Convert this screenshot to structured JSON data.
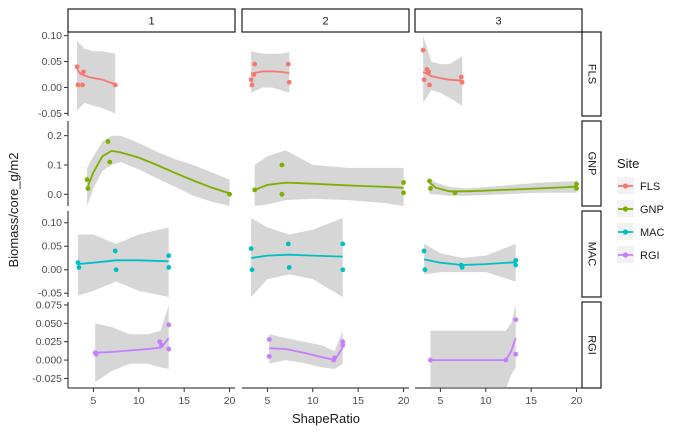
{
  "chart_data": {
    "type": "scatter",
    "xlabel": "ShapeRatio",
    "ylabel": "Biomass/core_g/m2",
    "columns": [
      "1",
      "2",
      "3"
    ],
    "rows": [
      "FLS",
      "GNP",
      "MAC",
      "RGI"
    ],
    "xlim": [
      2.2,
      20.6
    ],
    "xticks": [
      5,
      10,
      15,
      20
    ],
    "legend": {
      "title": "Site",
      "position": "right",
      "entries": [
        {
          "name": "FLS",
          "color": "#F8766D"
        },
        {
          "name": "GNP",
          "color": "#7CAE00"
        },
        {
          "name": "MAC",
          "color": "#00BFC4"
        },
        {
          "name": "RGI",
          "color": "#C77CFF"
        }
      ]
    },
    "row_scales": {
      "FLS": {
        "ylim": [
          -0.055,
          0.107
        ],
        "yticks": [
          -0.05,
          0.0,
          0.05,
          0.1
        ],
        "yticklabels": [
          "-0.05",
          "0.00",
          "0.05",
          "0.10"
        ]
      },
      "GNP": {
        "ylim": [
          -0.04,
          0.25
        ],
        "yticks": [
          0.0,
          0.1,
          0.2
        ],
        "yticklabels": [
          "0.0",
          "0.1",
          "0.2"
        ]
      },
      "MAC": {
        "ylim": [
          -0.058,
          0.125
        ],
        "yticks": [
          -0.05,
          0.0,
          0.05,
          0.1
        ],
        "yticklabels": [
          "-0.05",
          "0.00",
          "0.05",
          "0.10"
        ]
      },
      "RGI": {
        "ylim": [
          -0.038,
          0.079
        ],
        "yticks": [
          -0.025,
          0.0,
          0.025,
          0.05,
          0.075
        ],
        "yticklabels": [
          "-0.025",
          "0.000",
          "0.025",
          "0.050",
          "0.075"
        ]
      }
    },
    "panels": [
      {
        "col": "1",
        "row": "FLS",
        "points": [
          [
            3.2,
            0.04
          ],
          [
            3.3,
            0.005
          ],
          [
            3.8,
            0.005
          ],
          [
            3.9,
            0.03
          ],
          [
            7.4,
            0.005
          ]
        ],
        "fit": [
          [
            3.2,
            0.035
          ],
          [
            3.6,
            0.026
          ],
          [
            4.5,
            0.02
          ],
          [
            6,
            0.015
          ],
          [
            7.4,
            0.006
          ]
        ],
        "band": [
          [
            3.2,
            -0.045,
            0.09
          ],
          [
            4,
            -0.03,
            0.075
          ],
          [
            5,
            -0.035,
            0.07
          ],
          [
            6,
            -0.04,
            0.07
          ],
          [
            7.4,
            -0.05,
            0.065
          ]
        ]
      },
      {
        "col": "1",
        "row": "GNP",
        "points": [
          [
            4.3,
            0.05
          ],
          [
            4.4,
            0.02
          ],
          [
            6.6,
            0.18
          ],
          [
            6.8,
            0.11
          ],
          [
            20.0,
            0.0
          ]
        ],
        "fit": [
          [
            4.3,
            0.02
          ],
          [
            5,
            0.075
          ],
          [
            6,
            0.13
          ],
          [
            7,
            0.148
          ],
          [
            8,
            0.143
          ],
          [
            10,
            0.125
          ],
          [
            12,
            0.1
          ],
          [
            14,
            0.073
          ],
          [
            16,
            0.047
          ],
          [
            18,
            0.023
          ],
          [
            20,
            0.003
          ]
        ],
        "band": [
          [
            4.3,
            -0.04,
            0.09
          ],
          [
            5,
            0.02,
            0.13
          ],
          [
            6,
            0.08,
            0.18
          ],
          [
            7,
            0.1,
            0.2
          ],
          [
            8,
            0.11,
            0.2
          ],
          [
            10,
            0.085,
            0.175
          ],
          [
            12,
            0.055,
            0.145
          ],
          [
            14,
            0.025,
            0.12
          ],
          [
            16,
            -0.005,
            0.1
          ],
          [
            18,
            -0.025,
            0.075
          ],
          [
            20,
            -0.04,
            0.05
          ]
        ]
      },
      {
        "col": "1",
        "row": "MAC",
        "points": [
          [
            3.3,
            0.015
          ],
          [
            3.4,
            0.005
          ],
          [
            7.4,
            0.04
          ],
          [
            7.5,
            0.0
          ],
          [
            13.3,
            0.03
          ],
          [
            13.3,
            0.005
          ]
        ],
        "fit": [
          [
            3.3,
            0.012
          ],
          [
            5,
            0.015
          ],
          [
            7.5,
            0.02
          ],
          [
            10,
            0.02
          ],
          [
            13.3,
            0.018
          ]
        ],
        "band": [
          [
            3.3,
            -0.055,
            0.075
          ],
          [
            5,
            -0.045,
            0.075
          ],
          [
            7.5,
            -0.025,
            0.055
          ],
          [
            10,
            -0.045,
            0.075
          ],
          [
            13.3,
            -0.058,
            0.09
          ]
        ]
      },
      {
        "col": "1",
        "row": "RGI",
        "points": [
          [
            5.2,
            0.01
          ],
          [
            5.3,
            0.008
          ],
          [
            12.3,
            0.025
          ],
          [
            12.5,
            0.02
          ],
          [
            13.3,
            0.048
          ],
          [
            13.3,
            0.015
          ]
        ],
        "fit": [
          [
            5.2,
            0.01
          ],
          [
            7,
            0.011
          ],
          [
            9,
            0.013
          ],
          [
            11,
            0.015
          ],
          [
            12.4,
            0.017
          ],
          [
            12.8,
            0.022
          ],
          [
            13.3,
            0.03
          ]
        ],
        "band": [
          [
            5.2,
            -0.03,
            0.05
          ],
          [
            7,
            -0.015,
            0.045
          ],
          [
            9,
            -0.005,
            0.035
          ],
          [
            11,
            -0.005,
            0.035
          ],
          [
            12.4,
            -0.01,
            0.04
          ],
          [
            13.3,
            -0.012,
            0.075
          ]
        ]
      },
      {
        "col": "2",
        "row": "FLS",
        "points": [
          [
            3.2,
            0.015
          ],
          [
            3.3,
            0.005
          ],
          [
            3.5,
            0.025
          ],
          [
            3.6,
            0.045
          ],
          [
            7.3,
            0.045
          ],
          [
            7.4,
            0.01
          ]
        ],
        "fit": [
          [
            3.2,
            0.027
          ],
          [
            4.5,
            0.031
          ],
          [
            5.5,
            0.031
          ],
          [
            6.5,
            0.03
          ],
          [
            7.4,
            0.028
          ]
        ],
        "band": [
          [
            3.2,
            -0.01,
            0.07
          ],
          [
            4.5,
            0.0,
            0.065
          ],
          [
            5.5,
            0.0,
            0.065
          ],
          [
            6.5,
            -0.005,
            0.065
          ],
          [
            7.4,
            -0.01,
            0.068
          ]
        ]
      },
      {
        "col": "2",
        "row": "GNP",
        "points": [
          [
            3.6,
            0.015
          ],
          [
            6.6,
            0.1
          ],
          [
            6.6,
            0.0
          ],
          [
            20.0,
            0.04
          ],
          [
            20.0,
            0.005
          ]
        ],
        "fit": [
          [
            3.6,
            0.015
          ],
          [
            5,
            0.032
          ],
          [
            7,
            0.04
          ],
          [
            10,
            0.036
          ],
          [
            14,
            0.03
          ],
          [
            18,
            0.025
          ],
          [
            20,
            0.022
          ]
        ],
        "band": [
          [
            3.6,
            -0.04,
            0.1
          ],
          [
            5,
            -0.035,
            0.13
          ],
          [
            7,
            -0.02,
            0.15
          ],
          [
            10,
            -0.015,
            0.1
          ],
          [
            14,
            -0.02,
            0.09
          ],
          [
            18,
            -0.03,
            0.09
          ],
          [
            20,
            -0.04,
            0.09
          ]
        ]
      },
      {
        "col": "2",
        "row": "MAC",
        "points": [
          [
            3.2,
            0.045
          ],
          [
            3.3,
            0.0
          ],
          [
            7.3,
            0.055
          ],
          [
            7.4,
            0.005
          ],
          [
            13.3,
            0.055
          ],
          [
            13.3,
            0.0
          ]
        ],
        "fit": [
          [
            3.2,
            0.025
          ],
          [
            5,
            0.03
          ],
          [
            7.4,
            0.032
          ],
          [
            10,
            0.03
          ],
          [
            13.3,
            0.028
          ]
        ],
        "band": [
          [
            3.2,
            -0.058,
            0.11
          ],
          [
            5,
            -0.02,
            0.09
          ],
          [
            7.4,
            -0.01,
            0.075
          ],
          [
            10,
            -0.02,
            0.085
          ],
          [
            13.3,
            -0.058,
            0.11
          ]
        ]
      },
      {
        "col": "2",
        "row": "RGI",
        "points": [
          [
            5.2,
            0.028
          ],
          [
            5.2,
            0.005
          ],
          [
            12.3,
            0.0
          ],
          [
            12.4,
            0.003
          ],
          [
            13.3,
            0.02
          ],
          [
            13.3,
            0.025
          ]
        ],
        "fit": [
          [
            5.2,
            0.016
          ],
          [
            7,
            0.015
          ],
          [
            9,
            0.01
          ],
          [
            11,
            0.004
          ],
          [
            12.4,
            0.0
          ],
          [
            13.3,
            0.017
          ]
        ],
        "band": [
          [
            5.2,
            -0.005,
            0.035
          ],
          [
            7,
            0.0,
            0.03
          ],
          [
            9,
            -0.004,
            0.025
          ],
          [
            11,
            -0.01,
            0.02
          ],
          [
            12.4,
            -0.012,
            0.012
          ],
          [
            13.3,
            -0.005,
            0.04
          ]
        ]
      },
      {
        "col": "3",
        "row": "FLS",
        "points": [
          [
            3.1,
            0.072
          ],
          [
            3.2,
            0.015
          ],
          [
            3.5,
            0.035
          ],
          [
            3.7,
            0.03
          ],
          [
            3.8,
            0.005
          ],
          [
            7.3,
            0.02
          ],
          [
            7.4,
            0.01
          ]
        ],
        "fit": [
          [
            3.1,
            0.03
          ],
          [
            4,
            0.022
          ],
          [
            5,
            0.018
          ],
          [
            6,
            0.015
          ],
          [
            7.4,
            0.013
          ]
        ],
        "band": [
          [
            3.1,
            -0.03,
            0.1
          ],
          [
            4,
            -0.005,
            0.05
          ],
          [
            5,
            -0.01,
            0.045
          ],
          [
            6,
            -0.02,
            0.045
          ],
          [
            7.4,
            -0.035,
            0.06
          ]
        ]
      },
      {
        "col": "3",
        "row": "GNP",
        "points": [
          [
            3.8,
            0.045
          ],
          [
            3.9,
            0.02
          ],
          [
            6.6,
            0.005
          ],
          [
            20.0,
            0.035
          ],
          [
            20.0,
            0.02
          ]
        ],
        "fit": [
          [
            3.8,
            0.04
          ],
          [
            4.5,
            0.022
          ],
          [
            6,
            0.01
          ],
          [
            8,
            0.01
          ],
          [
            12,
            0.015
          ],
          [
            16,
            0.02
          ],
          [
            20,
            0.026
          ]
        ],
        "band": [
          [
            3.8,
            0.0,
            0.055
          ],
          [
            4.5,
            0.0,
            0.04
          ],
          [
            6,
            -0.005,
            0.025
          ],
          [
            8,
            -0.005,
            0.02
          ],
          [
            12,
            0.0,
            0.03
          ],
          [
            16,
            0.005,
            0.04
          ],
          [
            20,
            0.005,
            0.045
          ]
        ]
      },
      {
        "col": "3",
        "row": "MAC",
        "points": [
          [
            3.2,
            0.04
          ],
          [
            3.3,
            0.0
          ],
          [
            7.3,
            0.01
          ],
          [
            7.4,
            0.005
          ],
          [
            13.3,
            0.02
          ],
          [
            13.3,
            0.01
          ]
        ],
        "fit": [
          [
            3.2,
            0.022
          ],
          [
            5,
            0.015
          ],
          [
            7.4,
            0.01
          ],
          [
            10,
            0.012
          ],
          [
            13.3,
            0.016
          ]
        ],
        "band": [
          [
            3.2,
            -0.01,
            0.055
          ],
          [
            5,
            -0.005,
            0.035
          ],
          [
            7.4,
            -0.005,
            0.025
          ],
          [
            10,
            -0.005,
            0.03
          ],
          [
            13.3,
            -0.025,
            0.055
          ]
        ]
      },
      {
        "col": "3",
        "row": "RGI",
        "points": [
          [
            3.9,
            0.0
          ],
          [
            12.2,
            0.0
          ],
          [
            13.3,
            0.055
          ],
          [
            13.3,
            0.008
          ]
        ],
        "fit": [
          [
            3.9,
            0.0
          ],
          [
            6,
            0.0
          ],
          [
            9,
            0.0
          ],
          [
            12.2,
            0.0
          ],
          [
            12.8,
            0.012
          ],
          [
            13.3,
            0.03
          ]
        ],
        "band": [
          [
            3.9,
            -0.04,
            0.04
          ],
          [
            6,
            -0.04,
            0.04
          ],
          [
            9,
            -0.04,
            0.04
          ],
          [
            12.2,
            -0.04,
            0.04
          ],
          [
            12.8,
            -0.02,
            0.05
          ],
          [
            13.3,
            -0.01,
            0.075
          ]
        ]
      }
    ]
  }
}
